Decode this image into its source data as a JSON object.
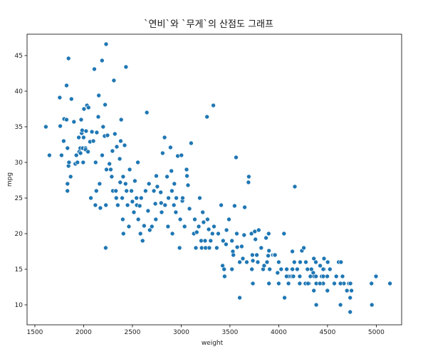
{
  "chart_data": {
    "type": "scatter",
    "title": "`연비`와 `무게`의 산점도 그래프",
    "xlabel": "weight",
    "ylabel": "mpg",
    "xlim": [
      1420,
      5260
    ],
    "ylim": [
      7.2,
      48.0
    ],
    "xticks": [
      1500,
      2000,
      2500,
      3000,
      3500,
      4000,
      4500,
      5000
    ],
    "yticks": [
      10,
      15,
      20,
      25,
      30,
      35,
      40,
      45
    ],
    "grid": false,
    "marker_color": "#1f77b4",
    "marker_edge": "#ffffff",
    "points": [
      [
        1613,
        35
      ],
      [
        1649,
        31
      ],
      [
        1755,
        39.1
      ],
      [
        1760,
        35.1
      ],
      [
        1773,
        31
      ],
      [
        1795,
        33
      ],
      [
        1800,
        36.1
      ],
      [
        1825,
        36
      ],
      [
        1835,
        32
      ],
      [
        1834,
        26
      ],
      [
        1835,
        27
      ],
      [
        1845,
        29.5
      ],
      [
        1850,
        30
      ],
      [
        1825,
        40.8
      ],
      [
        1845,
        44.6
      ],
      [
        1867,
        28
      ],
      [
        1875,
        38.9
      ],
      [
        1900,
        35.7
      ],
      [
        1915,
        29.8
      ],
      [
        1925,
        31
      ],
      [
        1937,
        30
      ],
      [
        1950,
        33.5
      ],
      [
        1955,
        31.5
      ],
      [
        1965,
        32
      ],
      [
        1968,
        31.3
      ],
      [
        1975,
        36
      ],
      [
        1980,
        34.1
      ],
      [
        1985,
        34.5
      ],
      [
        1990,
        32
      ],
      [
        1995,
        30
      ],
      [
        2000,
        33.5
      ],
      [
        2003,
        37.5
      ],
      [
        2019,
        32
      ],
      [
        2020,
        31.8
      ],
      [
        2025,
        34.4
      ],
      [
        2035,
        38
      ],
      [
        2045,
        31.5
      ],
      [
        2050,
        37.7
      ],
      [
        2065,
        32.9
      ],
      [
        2074,
        25
      ],
      [
        2085,
        34.3
      ],
      [
        2100,
        33
      ],
      [
        2110,
        43.1
      ],
      [
        2120,
        24
      ],
      [
        2123,
        30
      ],
      [
        2130,
        26
      ],
      [
        2135,
        34.2
      ],
      [
        2150,
        36.4
      ],
      [
        2155,
        39.4
      ],
      [
        2164,
        27
      ],
      [
        2171,
        23.6
      ],
      [
        2189,
        44.3
      ],
      [
        2190,
        31
      ],
      [
        2200,
        35
      ],
      [
        2215,
        33.7
      ],
      [
        2220,
        38.1
      ],
      [
        2226,
        18
      ],
      [
        2228,
        24
      ],
      [
        2230,
        46.6
      ],
      [
        2234,
        29
      ],
      [
        2245,
        33.8
      ],
      [
        2265,
        29.8
      ],
      [
        2278,
        29
      ],
      [
        2288,
        28
      ],
      [
        2295,
        31.6
      ],
      [
        2300,
        26
      ],
      [
        2310,
        41.5
      ],
      [
        2320,
        34
      ],
      [
        2330,
        26
      ],
      [
        2335,
        25
      ],
      [
        2340,
        32.2
      ],
      [
        2350,
        24
      ],
      [
        2370,
        30.5
      ],
      [
        2375,
        27.2
      ],
      [
        2380,
        33
      ],
      [
        2385,
        36
      ],
      [
        2395,
        25
      ],
      [
        2401,
        22
      ],
      [
        2405,
        28
      ],
      [
        2408,
        20
      ],
      [
        2420,
        32.4
      ],
      [
        2430,
        27
      ],
      [
        2434,
        43.4
      ],
      [
        2440,
        26
      ],
      [
        2450,
        24
      ],
      [
        2464,
        21
      ],
      [
        2472,
        29
      ],
      [
        2490,
        26
      ],
      [
        2500,
        24.5
      ],
      [
        2515,
        23
      ],
      [
        2525,
        27.4
      ],
      [
        2542,
        25
      ],
      [
        2545,
        24
      ],
      [
        2556,
        30
      ],
      [
        2560,
        22
      ],
      [
        2575,
        23.9
      ],
      [
        2582,
        20
      ],
      [
        2590,
        25
      ],
      [
        2600,
        19
      ],
      [
        2605,
        19
      ],
      [
        2620,
        21.1
      ],
      [
        2635,
        26
      ],
      [
        2648,
        37
      ],
      [
        2660,
        23.2
      ],
      [
        2670,
        27
      ],
      [
        2678,
        20.5
      ],
      [
        2700,
        21
      ],
      [
        2720,
        26
      ],
      [
        2735,
        24.2
      ],
      [
        2740,
        22
      ],
      [
        2745,
        28.1
      ],
      [
        2755,
        26.6
      ],
      [
        2790,
        25.8
      ],
      [
        2795,
        24.3
      ],
      [
        2800,
        23
      ],
      [
        2810,
        31.3
      ],
      [
        2830,
        33.5
      ],
      [
        2835,
        24
      ],
      [
        2855,
        28
      ],
      [
        2865,
        21
      ],
      [
        2870,
        25
      ],
      [
        2890,
        32.1
      ],
      [
        2900,
        28.8
      ],
      [
        2905,
        26
      ],
      [
        2910,
        20
      ],
      [
        2925,
        24
      ],
      [
        2930,
        27
      ],
      [
        2945,
        23
      ],
      [
        2950,
        25
      ],
      [
        2965,
        30.9
      ],
      [
        2984,
        18
      ],
      [
        2990,
        22
      ],
      [
        3003,
        31
      ],
      [
        3012,
        24.6
      ],
      [
        3015,
        25
      ],
      [
        3035,
        21
      ],
      [
        3055,
        29
      ],
      [
        3060,
        28.1
      ],
      [
        3070,
        26.8
      ],
      [
        3085,
        23.5
      ],
      [
        3102,
        32.7
      ],
      [
        3130,
        20
      ],
      [
        3139,
        22
      ],
      [
        3150,
        18
      ],
      [
        3160,
        20.2
      ],
      [
        3180,
        21
      ],
      [
        3190,
        25
      ],
      [
        3205,
        19
      ],
      [
        3210,
        18
      ],
      [
        3221,
        23
      ],
      [
        3230,
        21.6
      ],
      [
        3245,
        19
      ],
      [
        3250,
        18
      ],
      [
        3265,
        36.4
      ],
      [
        3270,
        22
      ],
      [
        3282,
        20.6
      ],
      [
        3288,
        18
      ],
      [
        3302,
        19
      ],
      [
        3320,
        20
      ],
      [
        3330,
        38
      ],
      [
        3336,
        21
      ],
      [
        3365,
        18
      ],
      [
        3380,
        20
      ],
      [
        3410,
        24
      ],
      [
        3425,
        15.5
      ],
      [
        3430,
        19
      ],
      [
        3445,
        14
      ],
      [
        3460,
        18.5
      ],
      [
        3465,
        20.5
      ],
      [
        3490,
        22
      ],
      [
        3520,
        19
      ],
      [
        3530,
        17.5
      ],
      [
        3535,
        17
      ],
      [
        3547,
        23.9
      ],
      [
        3563,
        30.7
      ],
      [
        3570,
        20
      ],
      [
        3574,
        18.1
      ],
      [
        3600,
        16
      ],
      [
        3620,
        18.2
      ],
      [
        3632,
        16.5
      ],
      [
        3645,
        19.8
      ],
      [
        3651,
        23.7
      ],
      [
        3672,
        16
      ],
      [
        3690,
        27.2
      ],
      [
        3693,
        28
      ],
      [
        3720,
        20
      ],
      [
        3725,
        15
      ],
      [
        3730,
        17
      ],
      [
        3735,
        16.2
      ],
      [
        3755,
        20.3
      ],
      [
        3761,
        19.2
      ],
      [
        3775,
        17
      ],
      [
        3785,
        16
      ],
      [
        3795,
        20.5
      ],
      [
        3820,
        18
      ],
      [
        3840,
        15
      ],
      [
        3850,
        15.5
      ],
      [
        3870,
        19.4
      ],
      [
        3880,
        16
      ],
      [
        3892,
        16.9
      ],
      [
        3897,
        20
      ],
      [
        3900,
        17.6
      ],
      [
        3907,
        15
      ],
      [
        3940,
        17
      ],
      [
        3955,
        17
      ],
      [
        3962,
        17
      ],
      [
        3988,
        14.5
      ],
      [
        4000,
        16
      ],
      [
        4025,
        15
      ],
      [
        4054,
        20
      ],
      [
        4060,
        11
      ],
      [
        4082,
        15
      ],
      [
        4100,
        13
      ],
      [
        4129,
        14
      ],
      [
        4135,
        15
      ],
      [
        4140,
        17.5
      ],
      [
        4141,
        15
      ],
      [
        4150,
        14
      ],
      [
        4160,
        16
      ],
      [
        4165,
        26.6
      ],
      [
        4190,
        15
      ],
      [
        4215,
        14
      ],
      [
        4220,
        16
      ],
      [
        4237,
        17.6
      ],
      [
        4257,
        18
      ],
      [
        4274,
        13
      ],
      [
        4278,
        16
      ],
      [
        4294,
        15
      ],
      [
        4295,
        15
      ],
      [
        4310,
        13
      ],
      [
        4325,
        14
      ],
      [
        4335,
        15
      ],
      [
        4354,
        14.5
      ],
      [
        4360,
        16.5
      ],
      [
        4363,
        14
      ],
      [
        4380,
        16
      ],
      [
        4382,
        14
      ],
      [
        4385,
        13
      ],
      [
        4425,
        15.5
      ],
      [
        4440,
        14
      ],
      [
        4445,
        13
      ],
      [
        4456,
        13
      ],
      [
        4457,
        14
      ],
      [
        4464,
        15
      ],
      [
        4498,
        14
      ],
      [
        4499,
        12
      ],
      [
        4502,
        16
      ],
      [
        4525,
        15
      ],
      [
        4570,
        13
      ],
      [
        4590,
        14
      ],
      [
        4615,
        16
      ],
      [
        4633,
        10
      ],
      [
        4638,
        16
      ],
      [
        4654,
        14
      ],
      [
        4668,
        13
      ],
      [
        4699,
        12
      ],
      [
        4720,
        13
      ],
      [
        4732,
        11
      ],
      [
        4735,
        13
      ],
      [
        4746,
        12
      ],
      [
        4951,
        13
      ],
      [
        4955,
        10
      ],
      [
        4997,
        14
      ],
      [
        5140,
        13
      ],
      [
        4215,
        13
      ],
      [
        4422,
        13
      ],
      [
        4456,
        15
      ],
      [
        4633,
        13
      ],
      [
        4732,
        9
      ],
      [
        3520,
        15
      ],
      [
        3730,
        13
      ],
      [
        4000,
        13
      ],
      [
        4300,
        13
      ],
      [
        3900,
        13
      ],
      [
        4100,
        14
      ],
      [
        3600,
        11
      ],
      [
        3440,
        15
      ],
      [
        4080,
        14
      ],
      [
        4360,
        12
      ],
      [
        4385,
        10
      ],
      [
        4464,
        16.5
      ],
      [
        3735,
        13
      ]
    ]
  }
}
